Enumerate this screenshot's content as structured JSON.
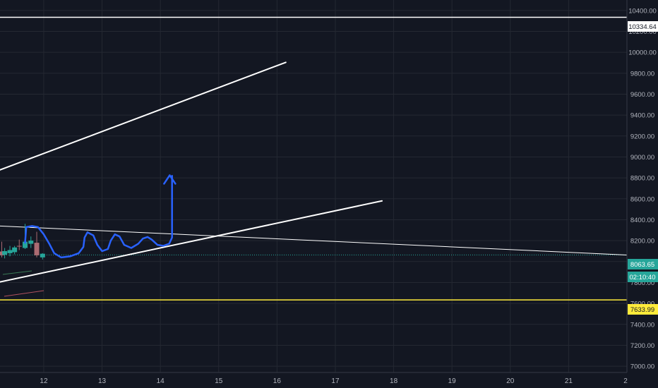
{
  "chart_data": {
    "type": "candlestick",
    "colors": {
      "background": "#131722",
      "grid": "#242832",
      "axis_text": "#b2b5be",
      "bull": "#26a69a",
      "bear": "#ab6b72",
      "trendline": "#ffffff",
      "projection": "#2962ff",
      "price_line": "#26a69a",
      "support_line": "#ffeb3b"
    },
    "x_axis": {
      "ticks": [
        "12",
        "13",
        "14",
        "15",
        "16",
        "17",
        "18",
        "19",
        "20",
        "21",
        "2"
      ],
      "range": [
        11.25,
        22.0
      ]
    },
    "y_axis": {
      "ticks": [
        "10400.00",
        "10200.00",
        "10000.00",
        "9800.00",
        "9600.00",
        "9400.00",
        "9200.00",
        "9000.00",
        "8800.00",
        "8600.00",
        "8400.00",
        "8200.00",
        "8000.00",
        "7800.00",
        "7600.00",
        "7400.00",
        "7200.00",
        "7000.00"
      ],
      "range": [
        6940,
        10500
      ]
    },
    "candles": [
      {
        "x": 11.28,
        "open": 8096,
        "high": 8190,
        "low": 8040,
        "close": 8060
      },
      {
        "x": 11.33,
        "open": 8065,
        "high": 8130,
        "low": 8030,
        "close": 8100
      },
      {
        "x": 11.42,
        "open": 8080,
        "high": 8150,
        "low": 8050,
        "close": 8110
      },
      {
        "x": 11.5,
        "open": 8090,
        "high": 8150,
        "low": 8070,
        "close": 8135
      },
      {
        "x": 11.58,
        "open": 8150,
        "high": 8210,
        "low": 8110,
        "close": 8145
      },
      {
        "x": 11.68,
        "open": 8130,
        "high": 8360,
        "low": 8120,
        "close": 8190
      },
      {
        "x": 11.78,
        "open": 8170,
        "high": 8240,
        "low": 8130,
        "close": 8200
      },
      {
        "x": 11.88,
        "open": 8180,
        "high": 8285,
        "low": 8040,
        "close": 8060
      },
      {
        "x": 11.98,
        "open": 8040,
        "high": 8080,
        "low": 8020,
        "close": 8075
      }
    ],
    "price_labels": {
      "current_price": "8063.65",
      "countdown": "02:10:40",
      "resistance_price": "10334.64",
      "support_price": "7633.99"
    },
    "levels": {
      "current": 8063.65,
      "resistance": 10334.64,
      "support": 7633.99
    },
    "trendlines": [
      {
        "name": "upper-channel-line",
        "from": [
          11.25,
          8876
        ],
        "to": [
          16.15,
          9904
        ]
      },
      {
        "name": "lower-channel-line",
        "from": [
          11.25,
          7805
        ],
        "to": [
          17.8,
          8580
        ]
      },
      {
        "name": "descending-line",
        "from": [
          11.25,
          8340
        ],
        "to": [
          22.0,
          8063
        ]
      }
    ],
    "projection_path": [
      [
        11.68,
        8180
      ],
      [
        11.7,
        8330
      ],
      [
        11.8,
        8340
      ],
      [
        11.9,
        8330
      ],
      [
        12.0,
        8260
      ],
      [
        12.1,
        8165
      ],
      [
        12.18,
        8080
      ],
      [
        12.3,
        8040
      ],
      [
        12.45,
        8050
      ],
      [
        12.6,
        8080
      ],
      [
        12.68,
        8140
      ],
      [
        12.7,
        8230
      ],
      [
        12.75,
        8280
      ],
      [
        12.85,
        8250
      ],
      [
        12.92,
        8160
      ],
      [
        13.0,
        8100
      ],
      [
        13.1,
        8120
      ],
      [
        13.15,
        8200
      ],
      [
        13.22,
        8260
      ],
      [
        13.3,
        8240
      ],
      [
        13.38,
        8160
      ],
      [
        13.5,
        8130
      ],
      [
        13.62,
        8170
      ],
      [
        13.7,
        8220
      ],
      [
        13.78,
        8235
      ],
      [
        13.85,
        8210
      ],
      [
        13.95,
        8160
      ],
      [
        14.05,
        8150
      ],
      [
        14.15,
        8170
      ],
      [
        14.2,
        8230
      ],
      [
        14.2,
        8820
      ]
    ],
    "projection_arrow_tip": [
      14.16,
      8825
    ]
  }
}
